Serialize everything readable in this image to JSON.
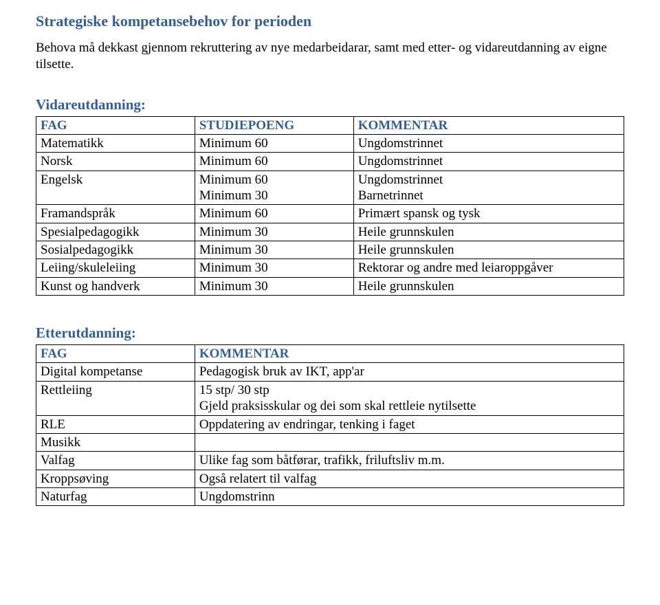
{
  "title": "Strategiske kompetansebehov for perioden",
  "intro": "Behova må dekkast gjennom rekruttering av nye medarbeidarar, samt med etter- og vidareutdanning av eigne tilsette.",
  "vidare": {
    "heading": "Vidareutdanning:",
    "headers": {
      "a": "FAG",
      "b": "STUDIEPOENG",
      "c": "KOMMENTAR"
    },
    "rows": [
      {
        "a": "Matematikk",
        "b": "Minimum 60",
        "c": "Ungdomstrinnet"
      },
      {
        "a": "Norsk",
        "b": "Minimum 60",
        "c": "Ungdomstrinnet"
      },
      {
        "a": "Engelsk",
        "b": "Minimum 60\nMinimum 30",
        "c": "Ungdomstrinnet\nBarnetrinnet"
      },
      {
        "a": "Framandspråk",
        "b": "Minimum 60",
        "c": "Primært spansk og tysk"
      },
      {
        "a": "Spesialpedagogikk",
        "b": "Minimum 30",
        "c": "Heile grunnskulen"
      },
      {
        "a": "Sosialpedagogikk",
        "b": "Minimum 30",
        "c": "Heile grunnskulen"
      },
      {
        "a": "Leiing/skuleleiing",
        "b": "Minimum 30",
        "c": "Rektorar og andre med leiaroppgåver"
      },
      {
        "a": "Kunst og handverk",
        "b": "Minimum 30",
        "c": "Heile grunnskulen"
      }
    ]
  },
  "etter": {
    "heading": "Etterutdanning:",
    "headers": {
      "a": "FAG",
      "b": "KOMMENTAR"
    },
    "rows": [
      {
        "a": "Digital kompetanse",
        "b": "Pedagogisk bruk av IKT, app'ar"
      },
      {
        "a": "Rettleiing",
        "b": "15 stp/ 30 stp\nGjeld praksisskular og dei som skal rettleie nytilsette"
      },
      {
        "a": "RLE",
        "b": "Oppdatering av endringar, tenking i faget"
      },
      {
        "a": "Musikk",
        "b": ""
      },
      {
        "a": "Valfag",
        "b": "Ulike fag som båtførar, trafikk, friluftsliv m.m."
      },
      {
        "a": "Kroppsøving",
        "b": "Også relatert til valfag"
      },
      {
        "a": "Naturfag",
        "b": "Ungdomstrinn"
      }
    ]
  },
  "colors": {
    "heading": "#365f91",
    "text": "#000000",
    "border": "#000000",
    "background": "#ffffff"
  },
  "typography": {
    "font_family": "Times New Roman",
    "heading_size_pt": 16,
    "body_size_pt": 14
  }
}
